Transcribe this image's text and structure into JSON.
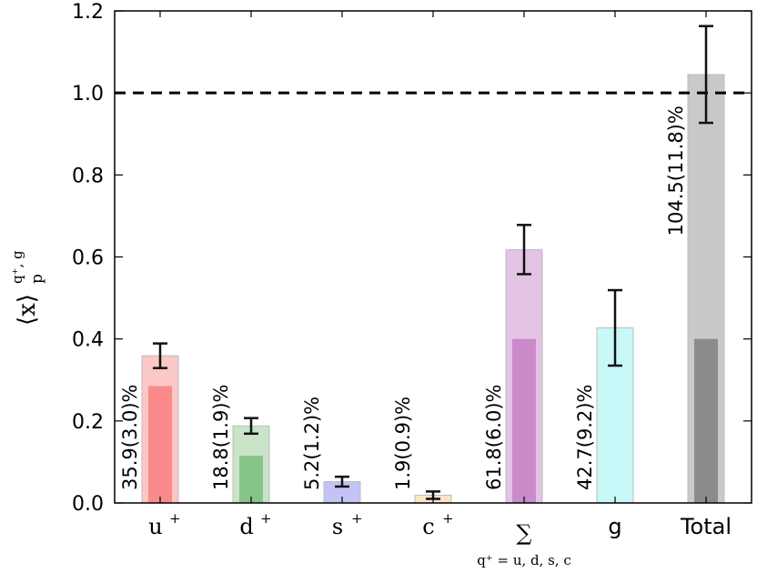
{
  "chart_data": {
    "type": "bar",
    "ylabel": "⟨x⟩",
    "ylabel_sub": "p",
    "ylabel_sup": "q⁺, g",
    "ylim": [
      0,
      1.2
    ],
    "yticks": [
      "0.0",
      "0.2",
      "0.4",
      "0.6",
      "0.8",
      "1.0",
      "1.2"
    ],
    "reference_line": {
      "y": 1.0,
      "style": "dashed",
      "color": "#000000"
    },
    "grid": false,
    "categories": [
      {
        "label": "u",
        "sup": "+",
        "sub": "",
        "value": 0.359,
        "error": 0.03,
        "inner": 0.285,
        "data_label": "35.9(3.0)%",
        "outer_color": "#fbc7c7",
        "inner_color": "#fa8a8a"
      },
      {
        "label": "d",
        "sup": "+",
        "sub": "",
        "value": 0.188,
        "error": 0.019,
        "inner": 0.115,
        "data_label": "18.8(1.9)%",
        "outer_color": "#c9e4c9",
        "inner_color": "#87c487"
      },
      {
        "label": "s",
        "sup": "+",
        "sub": "",
        "value": 0.052,
        "error": 0.012,
        "inner": null,
        "data_label": "5.2(1.2)%",
        "outer_color": "#c3c3f7",
        "inner_color": null
      },
      {
        "label": "c",
        "sup": "+",
        "sub": "",
        "value": 0.019,
        "error": 0.009,
        "inner": null,
        "data_label": "1.9(0.9)%",
        "outer_color": "#fbe5c9",
        "inner_color": null
      },
      {
        "label": "∑",
        "sup": "",
        "sub": "q⁺ = u, d, s, c",
        "value": 0.618,
        "error": 0.06,
        "inner": 0.4,
        "data_label": "61.8(6.0)%",
        "outer_color": "#e4c4e4",
        "inner_color": "#cb8bcb"
      },
      {
        "label": "g",
        "sup": "",
        "sub": "",
        "value": 0.427,
        "error": 0.092,
        "inner": null,
        "data_label": "42.7(9.2)%",
        "outer_color": "#c8f8f8",
        "inner_color": null
      },
      {
        "label": "Total",
        "sup": "",
        "sub": "",
        "value": 1.045,
        "error": 0.118,
        "inner": 0.4,
        "data_label": "104.5(11.8)%",
        "outer_color": "#c9c9c9",
        "inner_color": "#8b8b8b"
      }
    ]
  }
}
